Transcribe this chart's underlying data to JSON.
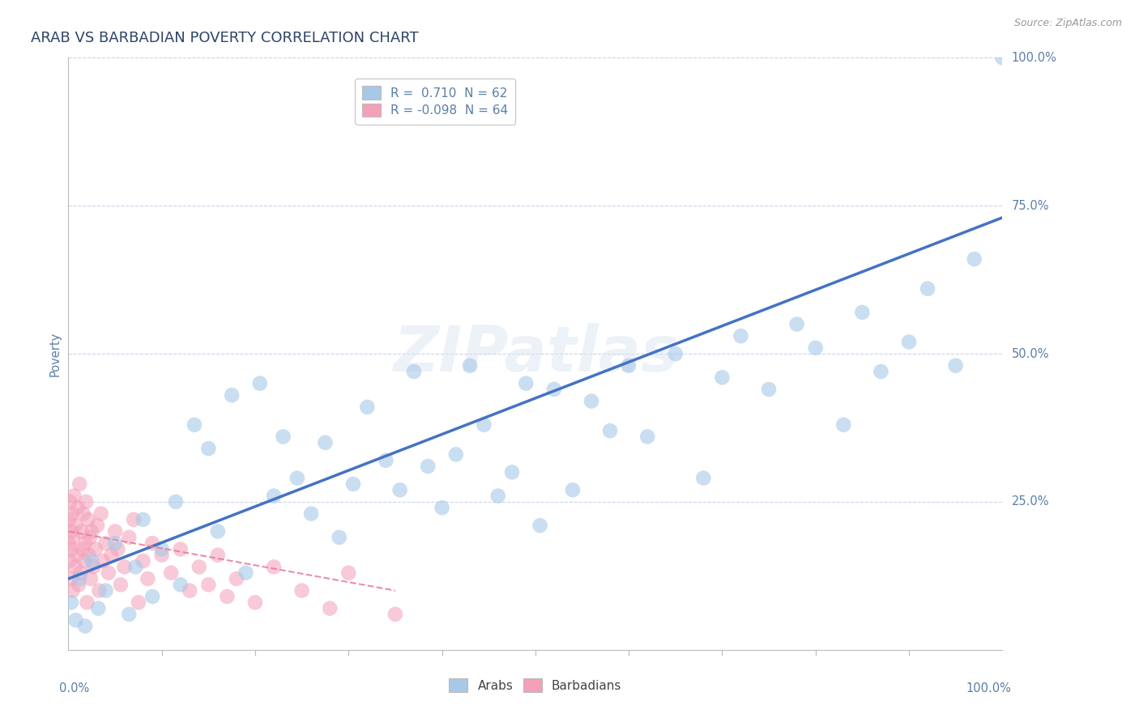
{
  "title": "ARAB VS BARBADIAN POVERTY CORRELATION CHART",
  "source": "Source: ZipAtlas.com",
  "ylabel": "Poverty",
  "ytick_labels": [
    "0.0%",
    "25.0%",
    "50.0%",
    "75.0%",
    "100.0%"
  ],
  "ytick_values": [
    0,
    25,
    50,
    75,
    100
  ],
  "xlim": [
    0,
    100
  ],
  "ylim": [
    0,
    100
  ],
  "watermark_text": "ZIPatlas",
  "legend_arab_R": "0.710",
  "legend_arab_N": "62",
  "legend_barb_R": "-0.098",
  "legend_barb_N": "64",
  "arab_color": "#A8C8E8",
  "barb_color": "#F4A0B8",
  "arab_line_color": "#4472C4",
  "barb_line_color": "#E8799A",
  "title_color": "#2E4468",
  "axis_label_color": "#5B7FA6",
  "background_color": "#FFFFFF",
  "grid_color": "#C8D4E8",
  "arab_x": [
    0.3,
    0.8,
    1.2,
    1.8,
    2.5,
    3.2,
    4.0,
    5.0,
    6.5,
    7.2,
    8.0,
    9.0,
    10.0,
    11.5,
    12.0,
    13.5,
    15.0,
    16.0,
    17.5,
    19.0,
    20.5,
    22.0,
    23.0,
    24.5,
    26.0,
    27.5,
    29.0,
    30.5,
    32.0,
    34.0,
    35.5,
    37.0,
    38.5,
    40.0,
    41.5,
    43.0,
    44.5,
    46.0,
    47.5,
    49.0,
    50.5,
    52.0,
    54.0,
    56.0,
    58.0,
    60.0,
    62.0,
    65.0,
    68.0,
    70.0,
    72.0,
    75.0,
    78.0,
    80.0,
    83.0,
    85.0,
    87.0,
    90.0,
    92.0,
    95.0,
    97.0,
    100.0
  ],
  "arab_y": [
    8,
    5,
    12,
    4,
    15,
    7,
    10,
    18,
    6,
    14,
    22,
    9,
    17,
    25,
    11,
    38,
    34,
    20,
    43,
    13,
    45,
    26,
    36,
    29,
    23,
    35,
    19,
    28,
    41,
    32,
    27,
    47,
    31,
    24,
    33,
    48,
    38,
    26,
    30,
    45,
    21,
    44,
    27,
    42,
    37,
    48,
    36,
    50,
    29,
    46,
    53,
    44,
    55,
    51,
    38,
    57,
    47,
    52,
    61,
    48,
    66,
    100
  ],
  "barb_x": [
    0.05,
    0.1,
    0.15,
    0.2,
    0.25,
    0.3,
    0.35,
    0.4,
    0.45,
    0.5,
    0.6,
    0.7,
    0.8,
    0.9,
    1.0,
    1.1,
    1.2,
    1.3,
    1.4,
    1.5,
    1.6,
    1.7,
    1.8,
    1.9,
    2.0,
    2.1,
    2.2,
    2.3,
    2.4,
    2.5,
    2.7,
    2.9,
    3.1,
    3.3,
    3.5,
    3.7,
    4.0,
    4.3,
    4.6,
    5.0,
    5.3,
    5.6,
    6.0,
    6.5,
    7.0,
    7.5,
    8.0,
    8.5,
    9.0,
    10.0,
    11.0,
    12.0,
    13.0,
    14.0,
    15.0,
    16.0,
    17.0,
    18.0,
    20.0,
    22.0,
    25.0,
    28.0,
    30.0,
    35.0
  ],
  "barb_y": [
    18,
    22,
    15,
    25,
    12,
    20,
    17,
    23,
    10,
    19,
    26,
    14,
    21,
    16,
    24,
    11,
    28,
    13,
    20,
    17,
    23,
    15,
    18,
    25,
    8,
    22,
    16,
    19,
    12,
    20,
    14,
    17,
    21,
    10,
    23,
    15,
    18,
    13,
    16,
    20,
    17,
    11,
    14,
    19,
    22,
    8,
    15,
    12,
    18,
    16,
    13,
    17,
    10,
    14,
    11,
    16,
    9,
    12,
    8,
    14,
    10,
    7,
    13,
    6
  ],
  "arab_line_x0": 0,
  "arab_line_y0": 12,
  "arab_line_x1": 100,
  "arab_line_y1": 73,
  "barb_line_x0": 0,
  "barb_line_y0": 20,
  "barb_line_x1": 35,
  "barb_line_y1": 10
}
